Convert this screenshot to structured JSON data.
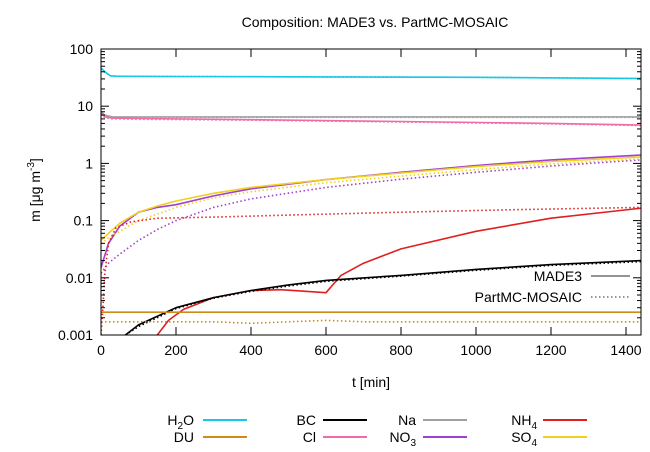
{
  "chart_data": {
    "type": "line",
    "title": "Composition: MADE3 vs. PartMC-MOSAIC",
    "xlabel": "t  [min]",
    "ylabel": {
      "prefix": "m  [μg m",
      "sup": "-3",
      "suffix": "]"
    },
    "xlim": [
      0,
      1440
    ],
    "ylim": [
      0.001,
      100
    ],
    "yscale": "log",
    "xticks": [
      0,
      200,
      400,
      600,
      800,
      1000,
      1200,
      1400
    ],
    "yticks": [
      {
        "value": 0.001,
        "label": "0.001"
      },
      {
        "value": 0.01,
        "label": "0.01"
      },
      {
        "value": 0.1,
        "label": "0.1"
      },
      {
        "value": 1,
        "label": "1"
      },
      {
        "value": 10,
        "label": "10"
      },
      {
        "value": 100,
        "label": "100"
      }
    ],
    "grid": false,
    "style_legend": [
      {
        "name": "MADE3",
        "dash": "solid"
      },
      {
        "name": "PartMC-MOSAIC",
        "dash": "dotted"
      }
    ],
    "species_legend": [
      {
        "base": "H",
        "sub": "2",
        "tail": "O",
        "color": "#18c8e8"
      },
      {
        "base": "BC",
        "sub": "",
        "tail": "",
        "color": "#000000"
      },
      {
        "base": "Na",
        "sub": "",
        "tail": "",
        "color": "#a0a0a0"
      },
      {
        "base": "NH",
        "sub": "4",
        "tail": "",
        "color": "#e02020"
      },
      {
        "base": "DU",
        "sub": "",
        "tail": "",
        "color": "#d08a18"
      },
      {
        "base": "Cl",
        "sub": "",
        "tail": "",
        "color": "#f06aa8"
      },
      {
        "base": "NO",
        "sub": "3",
        "tail": "",
        "color": "#a040d0"
      },
      {
        "base": "SO",
        "sub": "4",
        "tail": "",
        "color": "#f0d020"
      }
    ],
    "series": [
      {
        "species": "H2O",
        "model": "MADE3",
        "color": "#18c8e8",
        "dash": "solid",
        "x": [
          0,
          10,
          25,
          40,
          200,
          600,
          1000,
          1440
        ],
        "y": [
          47,
          40,
          34,
          33.5,
          33,
          32.5,
          32,
          30.5
        ]
      },
      {
        "species": "H2O",
        "model": "PartMC-MOSAIC",
        "color": "#18c8e8",
        "dash": "dotted",
        "x": [
          0,
          10,
          25,
          40,
          200,
          600,
          1000,
          1440
        ],
        "y": [
          45,
          39,
          34,
          33.5,
          33,
          32.5,
          32,
          30.5
        ]
      },
      {
        "species": "Na",
        "model": "MADE3",
        "color": "#a0a0a0",
        "dash": "solid",
        "x": [
          0,
          10,
          30,
          100,
          500,
          1000,
          1440
        ],
        "y": [
          8,
          7,
          6.5,
          6.5,
          6.5,
          6.5,
          6.5
        ]
      },
      {
        "species": "Na",
        "model": "PartMC-MOSAIC",
        "color": "#a0a0a0",
        "dash": "dotted",
        "x": [
          0,
          10,
          30,
          100,
          500,
          1000,
          1440
        ],
        "y": [
          7.5,
          6.8,
          6.4,
          6.4,
          6.4,
          6.4,
          6.4
        ]
      },
      {
        "species": "Cl",
        "model": "MADE3",
        "color": "#f06aa8",
        "dash": "solid",
        "x": [
          0,
          10,
          30,
          100,
          400,
          800,
          1200,
          1440
        ],
        "y": [
          7.8,
          6.5,
          6.2,
          6.1,
          5.8,
          5.4,
          5.0,
          4.7
        ]
      },
      {
        "species": "Cl",
        "model": "PartMC-MOSAIC",
        "color": "#f06aa8",
        "dash": "dotted",
        "x": [
          0,
          10,
          30,
          100,
          400,
          800,
          1200,
          1440
        ],
        "y": [
          7.4,
          6.3,
          6.0,
          5.9,
          5.7,
          5.3,
          4.9,
          4.6
        ]
      },
      {
        "species": "NO3",
        "model": "MADE3",
        "color": "#a040d0",
        "dash": "solid",
        "x": [
          0,
          20,
          50,
          100,
          150,
          200,
          300,
          400,
          600,
          800,
          1000,
          1200,
          1440
        ],
        "y": [
          0.015,
          0.04,
          0.08,
          0.14,
          0.17,
          0.19,
          0.27,
          0.36,
          0.52,
          0.7,
          0.92,
          1.15,
          1.4
        ]
      },
      {
        "species": "NO3",
        "model": "PartMC-MOSAIC",
        "color": "#a040d0",
        "dash": "dotted",
        "x": [
          0,
          20,
          50,
          100,
          150,
          200,
          300,
          400,
          600,
          800,
          1000,
          1200,
          1440
        ],
        "y": [
          0.012,
          0.018,
          0.026,
          0.045,
          0.07,
          0.1,
          0.17,
          0.24,
          0.38,
          0.53,
          0.7,
          0.9,
          1.15
        ]
      },
      {
        "species": "SO4",
        "model": "MADE3",
        "color": "#f0d020",
        "dash": "solid",
        "x": [
          0,
          20,
          50,
          100,
          150,
          200,
          300,
          400,
          600,
          800,
          1000,
          1200,
          1440
        ],
        "y": [
          0.045,
          0.06,
          0.09,
          0.14,
          0.18,
          0.22,
          0.3,
          0.38,
          0.52,
          0.68,
          0.88,
          1.08,
          1.3
        ]
      },
      {
        "species": "SO4",
        "model": "PartMC-MOSAIC",
        "color": "#f0d020",
        "dash": "dotted",
        "x": [
          0,
          20,
          50,
          100,
          150,
          200,
          300,
          400,
          600,
          800,
          1000,
          1200,
          1440
        ],
        "y": [
          0.04,
          0.05,
          0.065,
          0.1,
          0.13,
          0.17,
          0.25,
          0.32,
          0.46,
          0.6,
          0.78,
          0.98,
          1.2
        ]
      },
      {
        "species": "NH4",
        "model": "MADE3",
        "color": "#e02020",
        "dash": "solid",
        "x": [
          150,
          180,
          220,
          300,
          400,
          480,
          600,
          640,
          700,
          800,
          1000,
          1200,
          1440
        ],
        "y": [
          0.001,
          0.0018,
          0.0028,
          0.0045,
          0.006,
          0.0062,
          0.0055,
          0.011,
          0.018,
          0.032,
          0.065,
          0.11,
          0.165
        ]
      },
      {
        "species": "NH4",
        "model": "PartMC-MOSAIC",
        "color": "#e02020",
        "dash": "dotted",
        "x": [
          0,
          5,
          10,
          20,
          40,
          80,
          150,
          300,
          500,
          800,
          1100,
          1440
        ],
        "y": [
          0.001,
          0.003,
          0.012,
          0.04,
          0.075,
          0.095,
          0.11,
          0.115,
          0.125,
          0.14,
          0.155,
          0.17
        ]
      },
      {
        "species": "BC",
        "model": "MADE3",
        "color": "#000000",
        "dash": "solid",
        "x": [
          65,
          100,
          200,
          300,
          400,
          500,
          600,
          800,
          1000,
          1200,
          1440
        ],
        "y": [
          0.001,
          0.0015,
          0.003,
          0.0045,
          0.006,
          0.0075,
          0.009,
          0.011,
          0.014,
          0.017,
          0.02
        ]
      },
      {
        "species": "BC",
        "model": "PartMC-MOSAIC",
        "color": "#000000",
        "dash": "dotted",
        "x": [
          65,
          100,
          200,
          300,
          400,
          500,
          600,
          800,
          1000,
          1200,
          1440
        ],
        "y": [
          0.001,
          0.0014,
          0.0029,
          0.0044,
          0.0058,
          0.0072,
          0.0087,
          0.0107,
          0.0135,
          0.0165,
          0.0192
        ]
      },
      {
        "species": "DU",
        "model": "MADE3",
        "color": "#d08a18",
        "dash": "solid",
        "x": [
          0,
          1440
        ],
        "y": [
          0.0025,
          0.0025
        ]
      },
      {
        "species": "DU",
        "model": "PartMC-MOSAIC",
        "color": "#d08a18",
        "dash": "dotted",
        "x": [
          0,
          200,
          300,
          400,
          500,
          600,
          700,
          800,
          1000,
          1200,
          1440
        ],
        "y": [
          0.0017,
          0.0017,
          0.0017,
          0.0016,
          0.0017,
          0.0018,
          0.0017,
          0.0017,
          0.0017,
          0.0017,
          0.0017
        ]
      }
    ]
  }
}
